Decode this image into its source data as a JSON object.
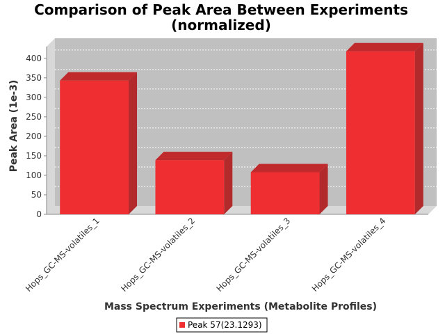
{
  "chart_data": {
    "type": "bar",
    "title": "Comparison of Peak Area Between Experiments",
    "subtitle": "(normalized)",
    "xlabel": "Mass Spectrum Experiments (Metabolite Profiles)",
    "ylabel": "Peak Area (1e-3)",
    "ylim": [
      0,
      430
    ],
    "yticks": [
      0,
      50,
      100,
      150,
      200,
      250,
      300,
      350,
      400
    ],
    "categories": [
      "Hops_GC-MS-volatiles_1",
      "Hops_GC-MS-volatiles_2",
      "Hops_GC-MS-volatiles_3",
      "Hops_GC-MS-volatiles_4"
    ],
    "series": [
      {
        "name": "Peak 57(23.1293)",
        "values": [
          343,
          139,
          108,
          418
        ],
        "color": "#ee2e31"
      }
    ],
    "grid": true,
    "legend_position": "bottom",
    "colors": {
      "plot_background": "#c0c0c0",
      "wall_side": "#d8d8d8",
      "floor": "#d8d8d8",
      "bar_front": "#ee2e31",
      "bar_top": "#c02a2c",
      "bar_side": "#b22a2b"
    }
  }
}
